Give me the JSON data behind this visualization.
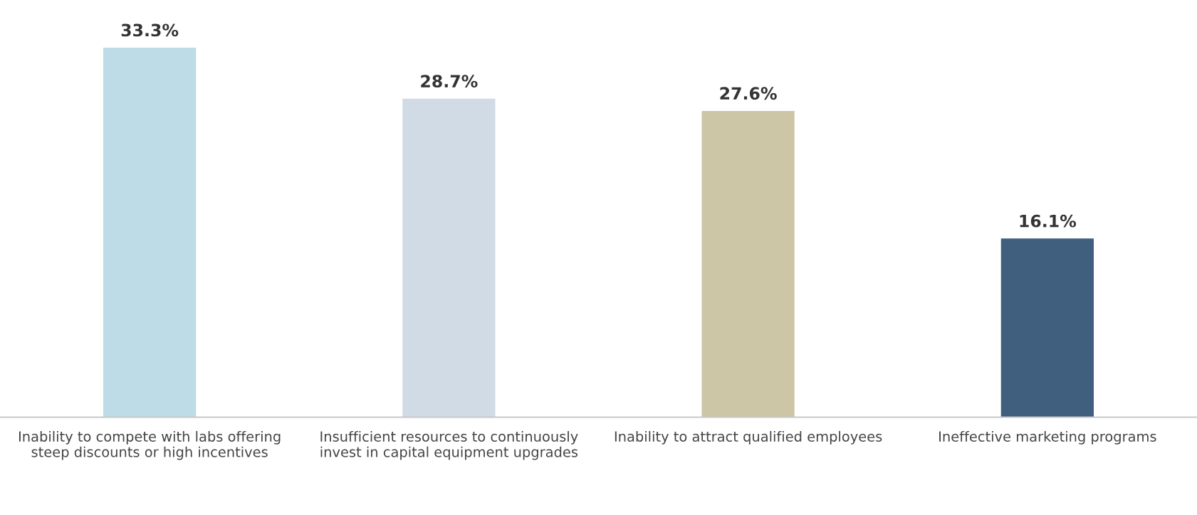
{
  "chart_data": {
    "type": "bar",
    "categories": [
      "Inability to compete with labs offering steep discounts or high incentives",
      "Insufficient resources to continuously invest in capital equipment upgrades",
      "Inability to attract qualified employees",
      "Ineffective marketing programs"
    ],
    "values": [
      33.3,
      28.7,
      27.6,
      16.1
    ],
    "colors": [
      "#bddce7",
      "#d1dbe6",
      "#cdc6a6",
      "#405f7e"
    ],
    "value_labels": [
      "33.3%",
      "28.7%",
      "27.6%",
      "16.1%"
    ],
    "grid": false,
    "legend": false
  }
}
